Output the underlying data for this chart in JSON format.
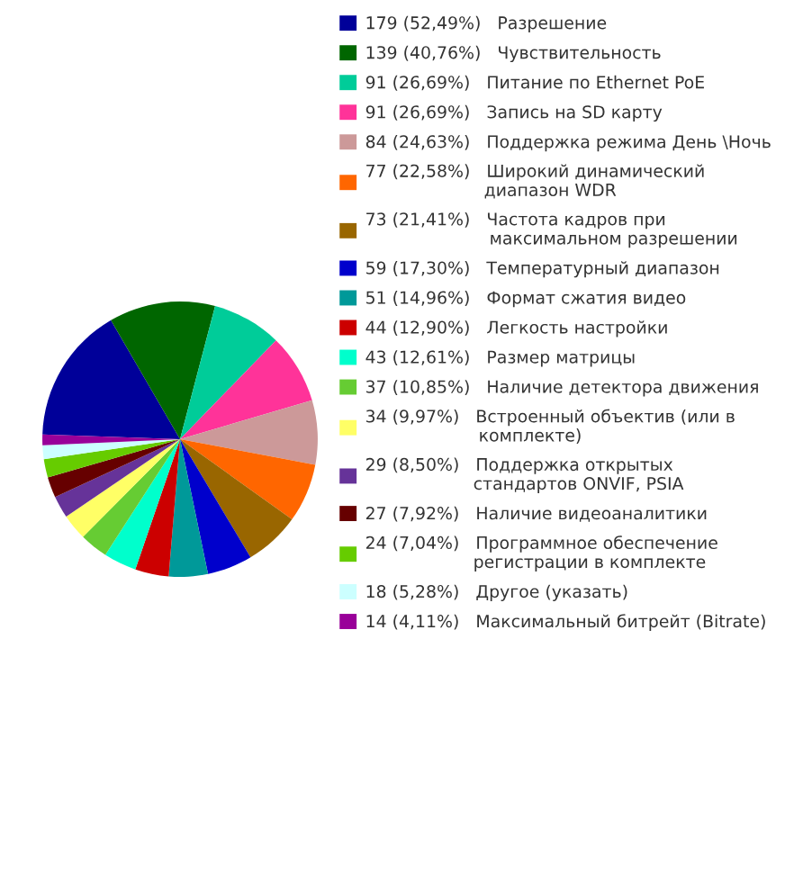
{
  "chart_data": {
    "type": "pie",
    "categories": [
      "Разрешение",
      "Чувствительность",
      "Питание по Ethernet PoE",
      "Запись на SD карту",
      "Поддержка режима День \\Ночь",
      "Широкий динамический диапазон WDR",
      "Частота кадров при максимальном разрешении",
      "Температурный диапазон",
      "Формат сжатия видео",
      "Легкость настройки",
      "Размер матрицы",
      "Наличие детектора движения",
      "Встроенный объектив (или в комплекте)",
      "Поддержка открытых стандартов ONVIF, PSIA",
      "Наличие видеоаналитики",
      "Программное обеспечение регистрации в комплекте",
      "Другое (указать)",
      "Максимальный битрейт (Bitrate)"
    ],
    "values": [
      179,
      139,
      91,
      91,
      84,
      77,
      73,
      59,
      51,
      44,
      43,
      37,
      34,
      29,
      27,
      24,
      18,
      14
    ],
    "value_labels": [
      "179 (52,49%)",
      "139 (40,76%)",
      "91 (26,69%)",
      "91 (26,69%)",
      "84 (24,63%)",
      "77 (22,58%)",
      "73 (21,41%)",
      "59 (17,30%)",
      "51 (14,96%)",
      "44 (12,90%)",
      "43 (12,61%)",
      "37 (10,85%)",
      "34 (9,97%)",
      "29 (8,50%)",
      "27 (7,92%)",
      "24 (7,04%)",
      "18 (5,28%)",
      "14 (4,11%)"
    ],
    "colors": [
      "#000099",
      "#006600",
      "#00cc99",
      "#ff3399",
      "#cc9999",
      "#ff6600",
      "#996600",
      "#0000cc",
      "#009999",
      "#cc0000",
      "#00ffcc",
      "#66cc33",
      "#ffff66",
      "#663399",
      "#660000",
      "#66cc00",
      "#ccffff",
      "#990099"
    ],
    "legend": "right"
  }
}
